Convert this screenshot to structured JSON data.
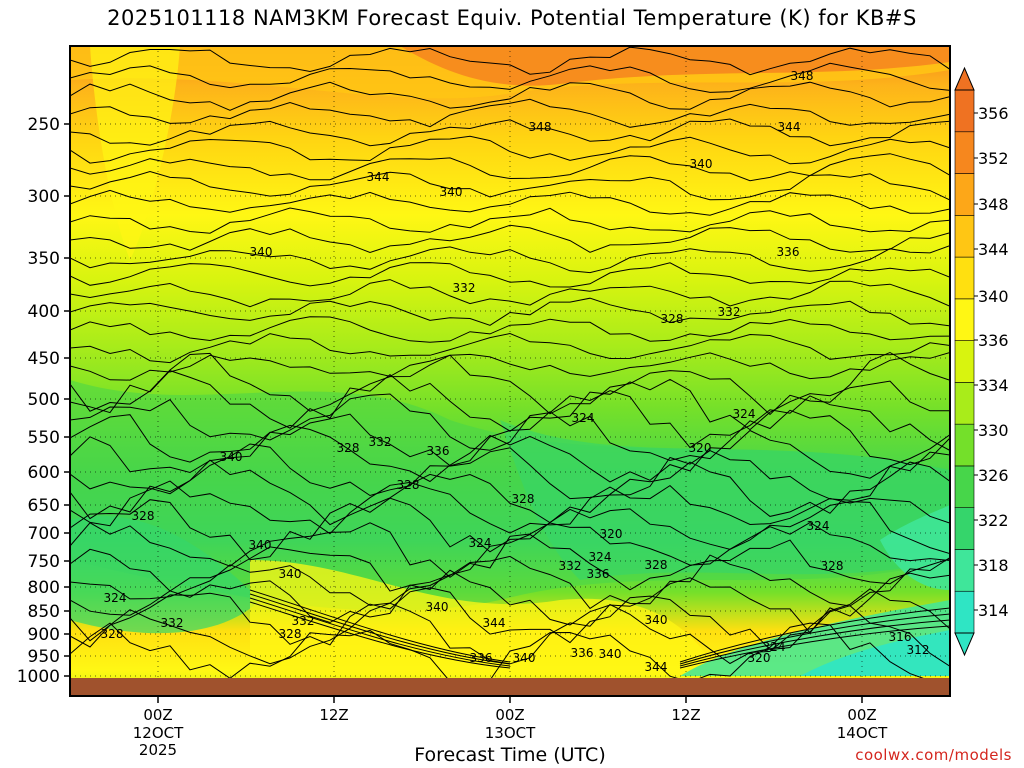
{
  "chart_data": {
    "type": "heatmap",
    "title": "2025101118 NAM3KM Forecast Equiv. Potential Temperature (K) for KB#S",
    "xlabel": "Forecast Time (UTC)",
    "ylabel": "",
    "y_scale": "log-pressure (inverted)",
    "y_ticks": [
      250,
      300,
      350,
      400,
      450,
      500,
      550,
      600,
      650,
      700,
      750,
      800,
      850,
      900,
      950,
      1000
    ],
    "ylim": [
      200,
      1000
    ],
    "x_ticks": [
      {
        "hour": "00Z",
        "date": "12OCT",
        "year": "2025"
      },
      {
        "hour": "12Z",
        "date": "",
        "year": ""
      },
      {
        "hour": "00Z",
        "date": "13OCT",
        "year": ""
      },
      {
        "hour": "12Z",
        "date": "",
        "year": ""
      },
      {
        "hour": "00Z",
        "date": "14OCT",
        "year": ""
      }
    ],
    "colorbar": {
      "levels": [
        314,
        318,
        322,
        326,
        330,
        334,
        336,
        340,
        344,
        348,
        352,
        356
      ],
      "colors": [
        "#2fe5c4",
        "#3fe69a",
        "#35d56b",
        "#47d64a",
        "#74e02a",
        "#a9ec1a",
        "#d8f40f",
        "#fff714",
        "#ffe010",
        "#ffc614",
        "#fda718",
        "#f6871e",
        "#ef7222"
      ]
    },
    "contour_labels": [
      {
        "text": "348"
      },
      {
        "text": "348"
      },
      {
        "text": "344"
      },
      {
        "text": "344"
      },
      {
        "text": "340"
      },
      {
        "text": "340"
      },
      {
        "text": "340"
      },
      {
        "text": "336"
      },
      {
        "text": "332"
      },
      {
        "text": "332"
      },
      {
        "text": "328"
      },
      {
        "text": "324"
      },
      {
        "text": "324"
      },
      {
        "text": "320"
      },
      {
        "text": "340"
      },
      {
        "text": "328"
      },
      {
        "text": "332"
      },
      {
        "text": "336"
      },
      {
        "text": "328"
      },
      {
        "text": "328"
      },
      {
        "text": "340"
      },
      {
        "text": "340"
      },
      {
        "text": "324"
      },
      {
        "text": "328"
      },
      {
        "text": "324"
      },
      {
        "text": "320"
      },
      {
        "text": "324"
      },
      {
        "text": "332"
      },
      {
        "text": "336"
      },
      {
        "text": "328"
      },
      {
        "text": "324"
      },
      {
        "text": "328"
      },
      {
        "text": "332"
      },
      {
        "text": "328"
      },
      {
        "text": "332"
      },
      {
        "text": "340"
      },
      {
        "text": "336"
      },
      {
        "text": "344"
      },
      {
        "text": "340"
      },
      {
        "text": "336"
      },
      {
        "text": "340"
      },
      {
        "text": "340"
      },
      {
        "text": "344"
      },
      {
        "text": "324"
      },
      {
        "text": "320"
      },
      {
        "text": "316"
      },
      {
        "text": "312"
      },
      {
        "text": "328"
      }
    ]
  },
  "credit": "coolwx.com/models"
}
